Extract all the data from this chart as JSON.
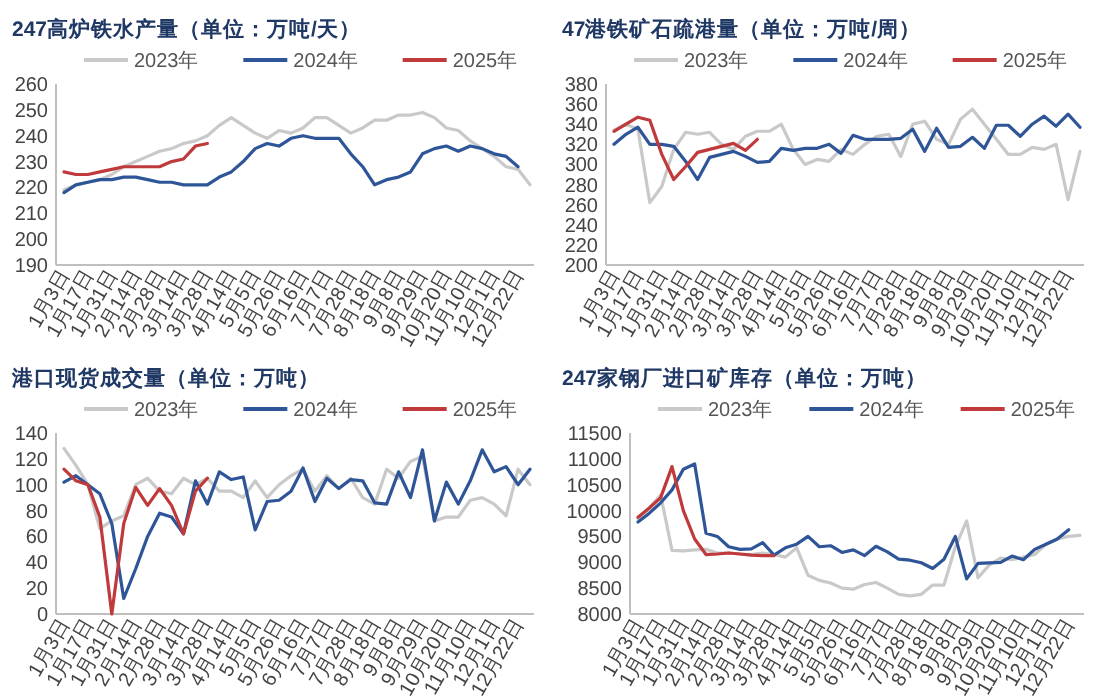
{
  "chart_data": [
    {
      "type": "line",
      "title": "247高炉铁水产量（单位：万吨/天）",
      "legend": "top",
      "grid": false,
      "categories": [
        "1月3日",
        null,
        "1月17日",
        null,
        "1月31日",
        null,
        "2月14日",
        null,
        "2月28日",
        null,
        "3月14日",
        null,
        "3月28日",
        null,
        "4月14日",
        null,
        "5月5日",
        null,
        "5月26日",
        null,
        "6月16日",
        null,
        "7月7日",
        null,
        "7月28日",
        null,
        "8月18日",
        null,
        "9月8日",
        null,
        "9月29日",
        null,
        "10月20日",
        null,
        "11月10日",
        null,
        "12月1日",
        null,
        "12月22日",
        null
      ],
      "ylim": [
        190,
        260
      ],
      "yticks": [
        190,
        200,
        210,
        220,
        230,
        240,
        250,
        260
      ],
      "series": [
        {
          "name": "2023年",
          "color": "#c9c9c9",
          "values": [
            219,
            221,
            222,
            223,
            225,
            228,
            230,
            232,
            234,
            235,
            237,
            238,
            240,
            244,
            247,
            244,
            241,
            239,
            242,
            241,
            243,
            247,
            247,
            244,
            241,
            243,
            246,
            246,
            248,
            248,
            249,
            247,
            243,
            242,
            238,
            235,
            232,
            228,
            227,
            221
          ]
        },
        {
          "name": "2024年",
          "color": "#2e5597",
          "values": [
            218,
            221,
            222,
            223,
            223,
            224,
            224,
            223,
            222,
            222,
            221,
            221,
            221,
            224,
            226,
            230,
            235,
            237,
            236,
            239,
            240,
            239,
            239,
            239,
            233,
            228,
            221,
            223,
            224,
            226,
            233,
            235,
            236,
            234,
            236,
            235,
            233,
            232,
            228,
            null
          ]
        },
        {
          "name": "2025年",
          "color": "#c0393b",
          "values": [
            226,
            225,
            225,
            226,
            227,
            228,
            228,
            228,
            228,
            230,
            231,
            236,
            237,
            null,
            null,
            null,
            null,
            null,
            null,
            null,
            null,
            null,
            null,
            null,
            null,
            null,
            null,
            null,
            null,
            null,
            null,
            null,
            null,
            null,
            null,
            null,
            null,
            null,
            null,
            null
          ]
        }
      ]
    },
    {
      "type": "line",
      "title": "47港铁矿石疏港量（单位：万吨/周）",
      "legend": "top",
      "grid": false,
      "categories": [
        "1月3日",
        null,
        "1月17日",
        null,
        "1月31日",
        null,
        "2月14日",
        null,
        "2月28日",
        null,
        "3月14日",
        null,
        "3月28日",
        null,
        "4月14日",
        null,
        "5月5日",
        null,
        "5月26日",
        null,
        "6月16日",
        null,
        "7月7日",
        null,
        "7月28日",
        null,
        "8月18日",
        null,
        "9月8日",
        null,
        "9月29日",
        null,
        "10月20日",
        null,
        "11月10日",
        null,
        "12月1日",
        null,
        "12月22日",
        null
      ],
      "ylim": [
        200,
        380
      ],
      "yticks": [
        200,
        220,
        240,
        260,
        280,
        300,
        320,
        340,
        360,
        380
      ],
      "series": [
        {
          "name": "2023年",
          "color": "#c9c9c9",
          "values": [
            334,
            340,
            335,
            262,
            278,
            315,
            332,
            330,
            332,
            320,
            315,
            328,
            333,
            333,
            340,
            315,
            300,
            305,
            303,
            315,
            310,
            320,
            328,
            330,
            308,
            340,
            343,
            325,
            320,
            345,
            355,
            340,
            325,
            310,
            310,
            317,
            315,
            320,
            265,
            313
          ]
        },
        {
          "name": "2024年",
          "color": "#2e5597",
          "values": [
            320,
            330,
            337,
            320,
            320,
            318,
            303,
            285,
            307,
            310,
            313,
            308,
            302,
            303,
            316,
            314,
            316,
            316,
            320,
            311,
            329,
            325,
            325,
            325,
            326,
            335,
            313,
            336,
            317,
            318,
            327,
            316,
            339,
            339,
            328,
            340,
            348,
            338,
            350,
            337
          ]
        },
        {
          "name": "2025年",
          "color": "#c0393b",
          "values": [
            333,
            340,
            347,
            344,
            310,
            285,
            298,
            312,
            315,
            318,
            321,
            314,
            325,
            null,
            null,
            null,
            null,
            null,
            null,
            null,
            null,
            null,
            null,
            null,
            null,
            null,
            null,
            null,
            null,
            null,
            null,
            null,
            null,
            null,
            null,
            null,
            null,
            null,
            null,
            null
          ]
        }
      ]
    },
    {
      "type": "line",
      "title": "港口现货成交量（单位：万吨）",
      "legend": "top",
      "grid": false,
      "categories": [
        "1月3日",
        null,
        "1月17日",
        null,
        "1月31日",
        null,
        "2月14日",
        null,
        "2月28日",
        null,
        "3月14日",
        null,
        "3月28日",
        null,
        "4月14日",
        null,
        "5月5日",
        null,
        "5月26日",
        null,
        "6月16日",
        null,
        "7月7日",
        null,
        "7月28日",
        null,
        "8月18日",
        null,
        "9月8日",
        null,
        "9月29日",
        null,
        "10月20日",
        null,
        "11月10日",
        null,
        "12月1日",
        null,
        "12月22日",
        null
      ],
      "ylim": [
        0,
        140
      ],
      "yticks": [
        0,
        20,
        40,
        60,
        80,
        100,
        120,
        140
      ],
      "series": [
        {
          "name": "2023年",
          "color": "#c9c9c9",
          "values": [
            128,
            115,
            100,
            66,
            72,
            76,
            100,
            105,
            95,
            93,
            105,
            100,
            105,
            95,
            95,
            90,
            103,
            90,
            100,
            107,
            112,
            95,
            107,
            97,
            105,
            90,
            85,
            112,
            105,
            118,
            122,
            72,
            75,
            75,
            88,
            90,
            85,
            76,
            112,
            100
          ]
        },
        {
          "name": "2024年",
          "color": "#2e5597",
          "values": [
            102,
            107,
            100,
            93,
            70,
            12,
            35,
            60,
            78,
            75,
            62,
            103,
            85,
            110,
            104,
            106,
            65,
            87,
            88,
            95,
            113,
            87,
            105,
            97,
            104,
            103,
            86,
            85,
            110,
            90,
            127,
            72,
            102,
            85,
            103,
            127,
            110,
            114,
            100,
            112
          ]
        },
        {
          "name": "2025年",
          "color": "#c0393b",
          "values": [
            112,
            103,
            100,
            75,
            0,
            70,
            98,
            84,
            97,
            84,
            62,
            95,
            105,
            null,
            null,
            null,
            null,
            null,
            null,
            null,
            null,
            null,
            null,
            null,
            null,
            null,
            null,
            null,
            null,
            null,
            null,
            null,
            null,
            null,
            null,
            null,
            null,
            null,
            null,
            null
          ]
        }
      ]
    },
    {
      "type": "line",
      "title": "247家钢厂进口矿库存（单位：万吨）",
      "legend": "top",
      "grid": false,
      "categories": [
        "1月3日",
        null,
        "1月17日",
        null,
        "1月31日",
        null,
        "2月14日",
        null,
        "2月28日",
        null,
        "3月14日",
        null,
        "3月28日",
        null,
        "4月14日",
        null,
        "5月5日",
        null,
        "5月26日",
        null,
        "6月16日",
        null,
        "7月7日",
        null,
        "7月28日",
        null,
        "8月18日",
        null,
        "9月8日",
        null,
        "9月29日",
        null,
        "10月20日",
        null,
        "11月10日",
        null,
        "12月1日",
        null,
        "12月22日",
        null
      ],
      "ylim": [
        8000,
        11500
      ],
      "yticks": [
        8000,
        8500,
        9000,
        9500,
        10000,
        10500,
        11000,
        11500
      ],
      "series": [
        {
          "name": "2023年",
          "color": "#c9c9c9",
          "values": [
            9850,
            10050,
            10300,
            9230,
            9220,
            9240,
            9250,
            9180,
            9180,
            9160,
            9150,
            9180,
            9150,
            9100,
            9280,
            8750,
            8650,
            8600,
            8500,
            8480,
            8570,
            8610,
            8500,
            8380,
            8350,
            8380,
            8560,
            8560,
            9300,
            9800,
            8700,
            8950,
            9080,
            9050,
            9100,
            9150,
            9350,
            9450,
            9500,
            9520
          ]
        },
        {
          "name": "2024年",
          "color": "#2e5597",
          "values": [
            9780,
            9950,
            10150,
            10400,
            10800,
            10900,
            9560,
            9500,
            9300,
            9250,
            9260,
            9380,
            9140,
            9280,
            9350,
            9500,
            9300,
            9320,
            9190,
            9240,
            9130,
            9310,
            9200,
            9060,
            9040,
            8990,
            8880,
            9060,
            9500,
            8680,
            8980,
            8990,
            9000,
            9120,
            9050,
            9250,
            9350,
            9450,
            9630,
            null
          ]
        },
        {
          "name": "2025年",
          "color": "#c0393b",
          "values": [
            9870,
            10050,
            10250,
            10850,
            10000,
            9450,
            9150,
            9160,
            9180,
            9160,
            9140,
            9130,
            9130,
            null,
            null,
            null,
            null,
            null,
            null,
            null,
            null,
            null,
            null,
            null,
            null,
            null,
            null,
            null,
            null,
            null,
            null,
            null,
            null,
            null,
            null,
            null,
            null,
            null,
            null,
            null
          ]
        }
      ]
    }
  ]
}
